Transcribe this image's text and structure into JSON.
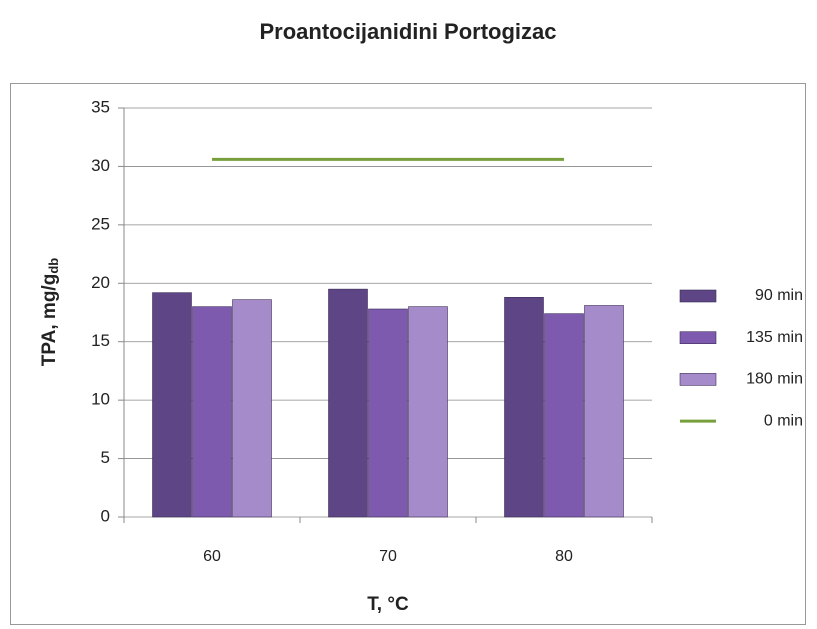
{
  "chart_data": {
    "type": "bar",
    "title": "Proantocijanidini Portogizac",
    "xlabel": "T, °C",
    "ylabel": "TPA, mg/g",
    "ylabel_sub": "db",
    "categories": [
      "60",
      "70",
      "80"
    ],
    "series": [
      {
        "name": "90 min",
        "color": "#5e4585",
        "values": [
          19.2,
          19.5,
          18.8
        ]
      },
      {
        "name": "135 min",
        "color": "#7e5aae",
        "values": [
          18.0,
          17.8,
          17.4
        ]
      },
      {
        "name": "180 min",
        "color": "#a68bca",
        "values": [
          18.6,
          18.0,
          18.1
        ]
      },
      {
        "name": "0 min",
        "color": "#77a03c",
        "type": "line",
        "values": [
          30.6,
          30.6,
          30.6
        ]
      }
    ],
    "ylim": [
      0,
      35
    ],
    "yticks": [
      0,
      5,
      10,
      15,
      20,
      25,
      30,
      35
    ],
    "grid": true,
    "legend": "right"
  }
}
